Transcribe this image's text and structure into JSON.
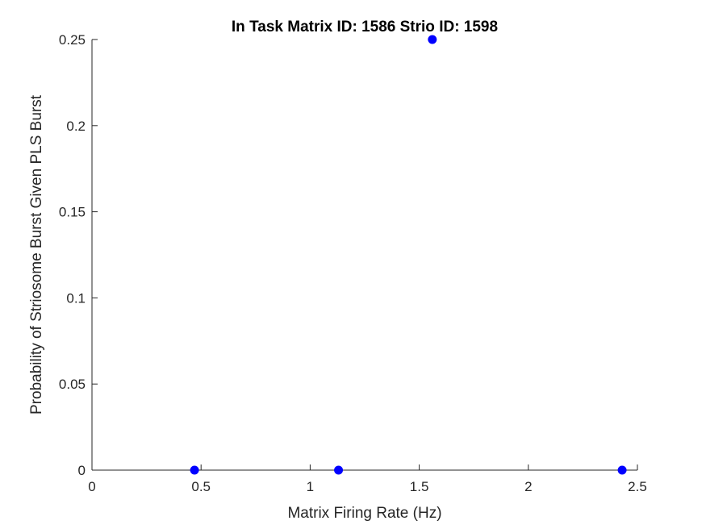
{
  "chart_data": {
    "type": "scatter",
    "title": "In Task Matrix ID: 1586 Strio ID: 1598",
    "xlabel": "Matrix Firing Rate (Hz)",
    "ylabel": "Probability of Striosome Burst Given PLS Burst",
    "xlim": [
      0,
      2.5
    ],
    "ylim": [
      0,
      0.25
    ],
    "xticks": [
      0,
      0.5,
      1,
      1.5,
      2,
      2.5
    ],
    "xtick_labels": [
      "0",
      "0.5",
      "1",
      "1.5",
      "2",
      "2.5"
    ],
    "yticks": [
      0,
      0.05,
      0.1,
      0.15,
      0.2,
      0.25
    ],
    "ytick_labels": [
      "0",
      "0.05",
      "0.1",
      "0.15",
      "0.2",
      "0.25"
    ],
    "grid": false,
    "legend": "none",
    "marker_color": "#0000ff",
    "axis_color": "#262626",
    "x": [
      0.47,
      1.13,
      1.56,
      2.43
    ],
    "y": [
      0,
      0,
      0.25,
      0
    ]
  }
}
